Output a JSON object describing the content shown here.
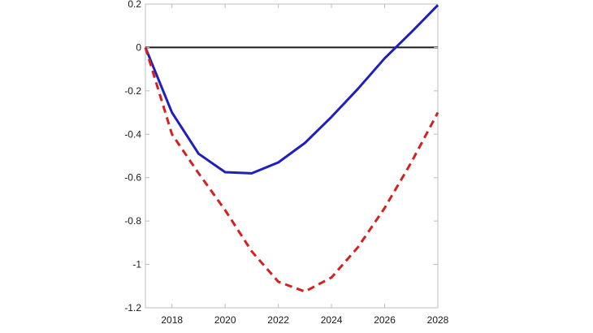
{
  "chart_data": {
    "type": "line",
    "title": "",
    "xlabel": "",
    "ylabel": "",
    "xlim": [
      2017,
      2028
    ],
    "ylim": [
      -1.2,
      0.2
    ],
    "x_ticks": [
      2018,
      2020,
      2022,
      2024,
      2026,
      2028
    ],
    "y_ticks": [
      0.2,
      0,
      -0.2,
      -0.4,
      -0.6,
      -0.8,
      -1,
      -1.2
    ],
    "x_tick_labels": [
      "2018",
      "2020",
      "2022",
      "2024",
      "2026",
      "2028"
    ],
    "y_tick_labels": [
      "0.2",
      "0",
      "-0.2",
      "-0.4",
      "-0.6",
      "-0.8",
      "-1",
      "-1.2"
    ],
    "grid": false,
    "reference_line": {
      "y": 0,
      "color": "#1a1a1a"
    },
    "series": [
      {
        "style": "solid",
        "color": "#1f1fbf",
        "x": [
          2017,
          2018,
          2019,
          2020,
          2021,
          2022,
          2023,
          2024,
          2025,
          2026,
          2027,
          2028
        ],
        "y": [
          0,
          -0.3,
          -0.49,
          -0.575,
          -0.58,
          -0.53,
          -0.44,
          -0.32,
          -0.19,
          -0.05,
          0.07,
          0.195
        ]
      },
      {
        "style": "dashed",
        "color": "#d62020",
        "x": [
          2017,
          2018,
          2019,
          2020,
          2021,
          2022,
          2023,
          2024,
          2025,
          2026,
          2027,
          2028
        ],
        "y": [
          0,
          -0.4,
          -0.58,
          -0.75,
          -0.94,
          -1.08,
          -1.125,
          -1.06,
          -0.92,
          -0.74,
          -0.53,
          -0.3
        ]
      }
    ]
  }
}
